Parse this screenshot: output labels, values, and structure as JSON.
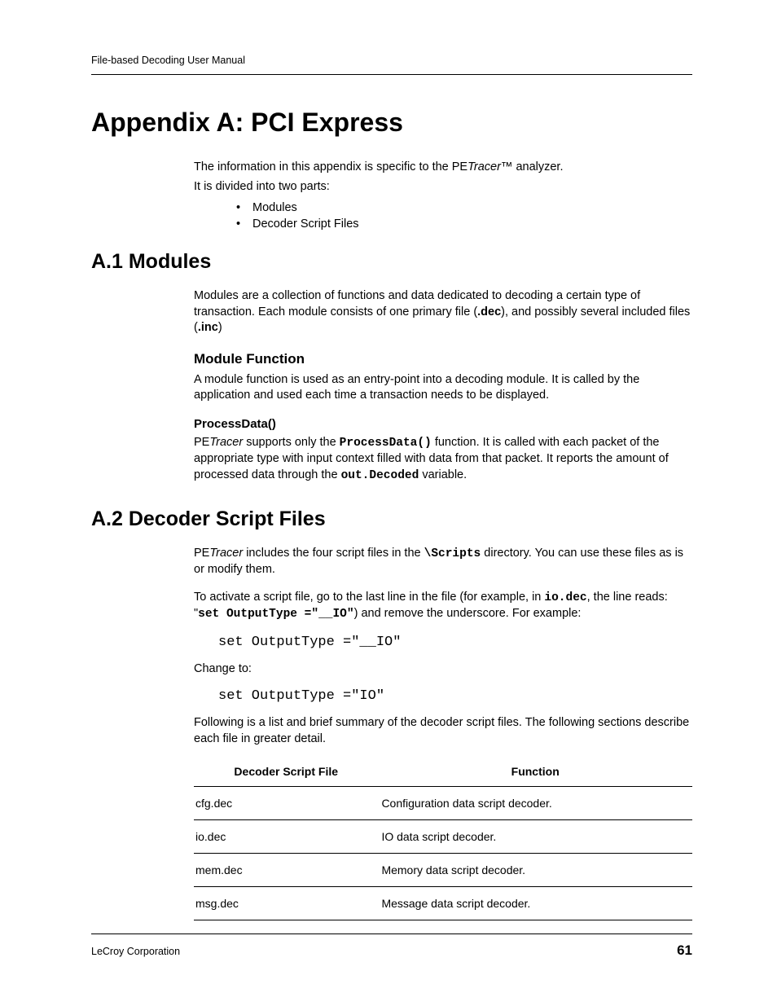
{
  "header": {
    "manual_title": "File-based Decoding User Manual"
  },
  "appendix": {
    "title": "Appendix A:  PCI Express"
  },
  "intro": {
    "line1_pre": "The information in this appendix is specific to the PE",
    "line1_italic": "Tracer",
    "line1_post": "™ analyzer.",
    "line2": "It is divided into two parts:",
    "bullets": [
      "Modules",
      "Decoder Script Files"
    ]
  },
  "section_a1": {
    "heading": "A.1 Modules",
    "para_pre": "Modules are a collection of functions and data dedicated to decoding a certain type of transaction. Each module consists of one primary file (",
    "para_b1": ".dec",
    "para_mid": "), and possibly several included files (",
    "para_b2": ".inc",
    "para_post": ")",
    "sub_heading": "Module Function",
    "sub_para": "A module function is used as an entry-point into a decoding module. It is called by the application and used each time a transaction needs to be displayed.",
    "subsub_heading": "ProcessData()",
    "subsub_p1": "PE",
    "subsub_p1_italic": "Tracer",
    "subsub_p2": " supports only the ",
    "subsub_mono1": "ProcessData()",
    "subsub_p3": " function. It is called with each packet of the appropriate type with input context filled with data from that packet. It reports the amount of processed data through the ",
    "subsub_mono2": "out.Decoded",
    "subsub_p4": " variable."
  },
  "section_a2": {
    "heading": "A.2 Decoder Script Files",
    "p1_a": "PE",
    "p1_italic": "Tracer",
    "p1_b": " includes the four script files in the ",
    "p1_mono": "\\Scripts",
    "p1_c": " directory. You can use these files as is or modify them.",
    "p2_a": "To activate a script file, go to the last line in the file (for example, in ",
    "p2_mono1": "io.dec",
    "p2_b": ", the line reads: \"",
    "p2_mono2": "set OutputType =\"__IO\"",
    "p2_c": ") and remove the underscore. For example:",
    "code1": "set OutputType =\"__IO\"",
    "change_to": "Change to:",
    "code2": "set OutputType =\"IO\"",
    "p3": "Following is a list and brief summary of the decoder script files. The following sections describe each file in greater detail.",
    "table": {
      "col1": "Decoder Script File",
      "col2": "Function",
      "rows": [
        {
          "file": "cfg.dec",
          "func": "Configuration data script decoder."
        },
        {
          "file": "io.dec",
          "func": "IO data script decoder."
        },
        {
          "file": "mem.dec",
          "func": "Memory data script decoder."
        },
        {
          "file": "msg.dec",
          "func": "Message data script decoder."
        }
      ]
    }
  },
  "footer": {
    "company": "LeCroy Corporation",
    "page_number": "61"
  }
}
